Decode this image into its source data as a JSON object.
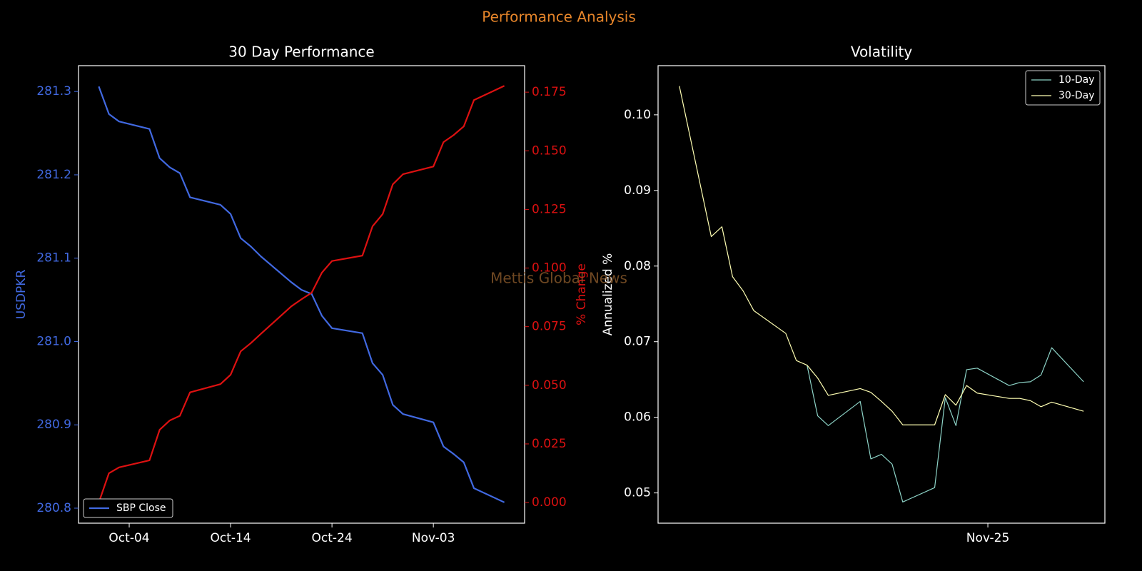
{
  "title": "Performance Analysis",
  "watermark": "Mettis Global News",
  "chart_data": [
    {
      "type": "line",
      "title": "30 Day Performance",
      "ylabel": "USDPKR",
      "y2label": "% Change",
      "x": [
        "10-01",
        "10-02",
        "10-03",
        "10-06",
        "10-07",
        "10-08",
        "10-09",
        "10-10",
        "10-13",
        "10-14",
        "10-15",
        "10-16",
        "10-17",
        "10-20",
        "10-21",
        "10-22",
        "10-23",
        "10-24",
        "10-27",
        "10-28",
        "10-29",
        "10-30",
        "10-31",
        "11-03",
        "11-04",
        "11-05",
        "11-06",
        "11-07",
        "11-10"
      ],
      "series": [
        {
          "name": "SBP Close",
          "color": "#4169e1",
          "values": [
            281.306,
            281.273,
            281.264,
            281.255,
            281.22,
            281.209,
            281.202,
            281.173,
            281.164,
            281.153,
            281.124,
            281.114,
            281.102,
            281.071,
            281.062,
            281.057,
            281.031,
            281.016,
            281.01,
            280.974,
            280.96,
            280.924,
            280.913,
            280.903,
            280.874,
            280.865,
            280.855,
            280.824,
            280.807
          ]
        },
        {
          "color": "#dd1111",
          "axis": "y2",
          "values": [
            0.0,
            0.0125,
            0.015,
            0.018,
            0.031,
            0.035,
            0.037,
            0.047,
            0.0505,
            0.0545,
            0.0645,
            0.068,
            0.072,
            0.0837,
            0.0867,
            0.0895,
            0.098,
            0.103,
            0.1053,
            0.1178,
            0.123,
            0.1357,
            0.14,
            0.1433,
            0.1537,
            0.1567,
            0.1604,
            0.1716,
            0.1777
          ]
        }
      ],
      "xlim": [
        "09-29",
        "11-12"
      ],
      "xticks": [
        {
          "value": "10-04",
          "label": "Oct-04"
        },
        {
          "value": "10-14",
          "label": "Oct-14"
        },
        {
          "value": "10-24",
          "label": "Oct-24"
        },
        {
          "value": "11-03",
          "label": "Nov-03"
        }
      ],
      "ylim": [
        280.782,
        281.331
      ],
      "yticks": [
        280.8,
        280.9,
        {
          "value": 281.0,
          "label": "281.0"
        },
        281.1,
        281.2,
        281.3
      ],
      "y2lim": [
        -0.0088,
        0.1863
      ],
      "y2ticks": [
        {
          "value": 0.0,
          "label": "0.000"
        },
        0.025,
        {
          "value": 0.05,
          "label": "0.050"
        },
        0.075,
        {
          "value": 0.1,
          "label": "0.100"
        },
        0.125,
        {
          "value": 0.15,
          "label": "0.150"
        },
        0.175
      ],
      "y_color": "#4169e1",
      "y2_color": "#dd1111",
      "legend": "lower left"
    },
    {
      "type": "line",
      "title": "Volatility",
      "ylabel": "Annualized %",
      "x": [
        "2025-10-03",
        "2025-10-06",
        "2025-10-07",
        "2025-10-08",
        "2025-10-09",
        "2025-10-10",
        "2025-10-13",
        "2025-10-14",
        "2025-10-15",
        "2025-10-16",
        "2025-10-17",
        "2025-10-20",
        "2025-10-21",
        "2025-10-22",
        "2025-10-23",
        "2025-10-24",
        "2025-10-27",
        "2025-10-28",
        "2025-10-29",
        "2025-10-30",
        "2025-10-31",
        "2025-11-03",
        "2025-11-04",
        "2025-11-05",
        "2025-11-06",
        "2025-11-07",
        "2025-11-10"
      ],
      "series": [
        {
          "name": "10-Day",
          "color": "#8dd3c7",
          "values": [
            null,
            null,
            null,
            null,
            null,
            null,
            null,
            null,
            0.0669,
            0.0602,
            0.0589,
            0.0621,
            0.0545,
            0.0551,
            0.0538,
            0.0488,
            0.0507,
            0.0626,
            0.0589,
            0.0663,
            0.0665,
            0.0642,
            0.0646,
            0.0647,
            0.0656,
            0.0692,
            0.0647
          ]
        },
        {
          "name": "30-Day",
          "color": "#ffffb3",
          "values": [
            0.1038,
            0.0839,
            0.0852,
            0.0786,
            0.0767,
            0.0741,
            0.0711,
            0.0675,
            0.0669,
            0.0652,
            0.0629,
            0.0638,
            0.0633,
            0.0621,
            0.0608,
            0.059,
            0.059,
            0.063,
            0.0616,
            0.0642,
            0.0632,
            0.0625,
            0.0625,
            0.0622,
            0.0614,
            0.062,
            0.0608
          ]
        }
      ],
      "xlim": [
        "2025-10-01",
        "2025-11-12"
      ],
      "xticks": [
        {
          "value": "2025-11-01",
          "label": "Nov-25"
        }
      ],
      "ylim": [
        0.046,
        0.1065
      ],
      "yticks": [
        0.05,
        0.06,
        0.07,
        0.08,
        0.09,
        {
          "value": 0.1,
          "label": "0.10"
        }
      ],
      "legend": "upper right"
    }
  ]
}
